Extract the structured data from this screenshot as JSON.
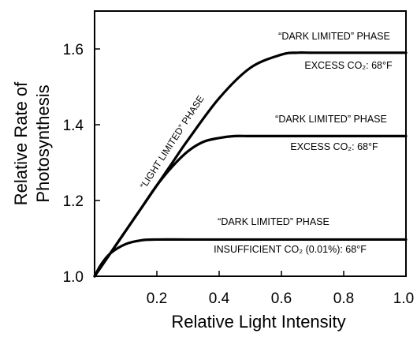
{
  "chart_data": {
    "type": "line",
    "xlabel": "Relative Light Intensity",
    "ylabel_line1": "Relative Rate of",
    "ylabel_line2": "Photosynthesis",
    "xlim": [
      0,
      1.0
    ],
    "ylim": [
      1.0,
      1.7
    ],
    "xticks": [
      "0.2",
      "0.4",
      "0.6",
      "0.8",
      "1.0"
    ],
    "yticks": [
      "1.0",
      "1.2",
      "1.4",
      "1.6"
    ],
    "grid": false,
    "series": [
      {
        "x": [
          0,
          0.05,
          0.1,
          0.15,
          0.2,
          0.25,
          0.3,
          0.4,
          0.5,
          0.6,
          0.65,
          0.7,
          0.8,
          0.9,
          1.0
        ],
        "y": [
          1.0,
          1.06,
          1.12,
          1.18,
          1.24,
          1.3,
          1.36,
          1.47,
          1.55,
          1.585,
          1.59,
          1.59,
          1.59,
          1.59,
          1.59
        ]
      },
      {
        "x": [
          0,
          0.05,
          0.1,
          0.15,
          0.2,
          0.25,
          0.3,
          0.35,
          0.4,
          0.45,
          0.5,
          0.6,
          0.8,
          1.0
        ],
        "y": [
          1.0,
          1.06,
          1.12,
          1.18,
          1.24,
          1.29,
          1.33,
          1.355,
          1.365,
          1.37,
          1.37,
          1.37,
          1.37,
          1.37
        ]
      },
      {
        "x": [
          0,
          0.02,
          0.05,
          0.1,
          0.15,
          0.2,
          0.3,
          0.5,
          0.8,
          1.0
        ],
        "y": [
          1.0,
          1.03,
          1.06,
          1.085,
          1.095,
          1.097,
          1.097,
          1.097,
          1.097,
          1.097
        ]
      }
    ],
    "annotations": {
      "light_limited": "“LIGHT LIMITED” PHASE",
      "dark_top": "“DARK LIMITED” PHASE",
      "excess_top": "EXCESS CO₂: 68°F",
      "dark_mid": "“DARK LIMITED” PHASE",
      "excess_mid": "EXCESS CO₂: 68°F",
      "dark_bottom": "“DARK LIMITED” PHASE",
      "insufficient": "INSUFFICIENT CO₂ (0.01%): 68°F"
    }
  }
}
